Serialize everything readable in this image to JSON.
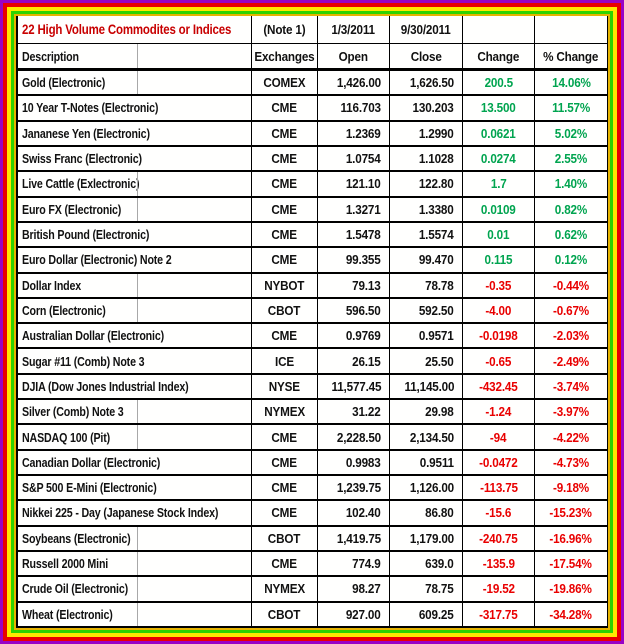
{
  "header": {
    "title": "22 High Volume Commodites or Indices",
    "note": "(Note 1)",
    "open_date": "1/3/2011",
    "close_date": "9/30/2011",
    "columns": [
      "Description",
      "Exchanges",
      "Open",
      "Close",
      "Change",
      "% Change"
    ]
  },
  "colors": {
    "positive_change": "#00a44f",
    "negative_change": "#e90000",
    "title_text": "#c80000",
    "frame_outer_to_inner": [
      "#9902c6",
      "#e90000",
      "#ffe800",
      "#2ed300",
      "#e6b400"
    ]
  },
  "rows": [
    {
      "description": "Gold (Electronic)",
      "exchange": "COMEX",
      "open": "1,426.00",
      "close": "1,626.50",
      "change": "200.5",
      "pct_change": "14.06%",
      "direction": "up"
    },
    {
      "description": "10 Year T-Notes (Electronic)",
      "exchange": "CME",
      "open": "116.703",
      "close": "130.203",
      "change": "13.500",
      "pct_change": "11.57%",
      "direction": "up"
    },
    {
      "description": "Jananese Yen (Electronic)",
      "exchange": "CME",
      "open": "1.2369",
      "close": "1.2990",
      "change": "0.0621",
      "pct_change": "5.02%",
      "direction": "up"
    },
    {
      "description": "Swiss Franc (Electronic)",
      "exchange": "CME",
      "open": "1.0754",
      "close": "1.1028",
      "change": "0.0274",
      "pct_change": "2.55%",
      "direction": "up"
    },
    {
      "description": "Live Cattle (Exlectronic)",
      "exchange": "CME",
      "open": "121.10",
      "close": "122.80",
      "change": "1.7",
      "pct_change": "1.40%",
      "direction": "up"
    },
    {
      "description": "Euro FX (Electronic)",
      "exchange": "CME",
      "open": "1.3271",
      "close": "1.3380",
      "change": "0.0109",
      "pct_change": "0.82%",
      "direction": "up"
    },
    {
      "description": "British Pound (Electronic)",
      "exchange": "CME",
      "open": "1.5478",
      "close": "1.5574",
      "change": "0.01",
      "pct_change": "0.62%",
      "direction": "up"
    },
    {
      "description": "Euro Dollar (Electronic) Note 2",
      "exchange": "CME",
      "open": "99.355",
      "close": "99.470",
      "change": "0.115",
      "pct_change": "0.12%",
      "direction": "up"
    },
    {
      "description": "Dollar Index",
      "exchange": "NYBOT",
      "open": "79.13",
      "close": "78.78",
      "change": "-0.35",
      "pct_change": "-0.44%",
      "direction": "down"
    },
    {
      "description": "Corn (Electronic)",
      "exchange": "CBOT",
      "open": "596.50",
      "close": "592.50",
      "change": "-4.00",
      "pct_change": "-0.67%",
      "direction": "down"
    },
    {
      "description": "Australian Dollar (Electronic)",
      "exchange": "CME",
      "open": "0.9769",
      "close": "0.9571",
      "change": "-0.0198",
      "pct_change": "-2.03%",
      "direction": "down"
    },
    {
      "description": "Sugar #11 (Comb) Note 3",
      "exchange": "ICE",
      "open": "26.15",
      "close": "25.50",
      "change": "-0.65",
      "pct_change": "-2.49%",
      "direction": "down"
    },
    {
      "description": "DJIA (Dow Jones Industrial Index)",
      "exchange": "NYSE",
      "open": "11,577.45",
      "close": "11,145.00",
      "change": "-432.45",
      "pct_change": "-3.74%",
      "direction": "down"
    },
    {
      "description": "Silver (Comb) Note 3",
      "exchange": "NYMEX",
      "open": "31.22",
      "close": "29.98",
      "change": "-1.24",
      "pct_change": "-3.97%",
      "direction": "down"
    },
    {
      "description": "NASDAQ 100 (Pit)",
      "exchange": "CME",
      "open": "2,228.50",
      "close": "2,134.50",
      "change": "-94",
      "pct_change": "-4.22%",
      "direction": "down"
    },
    {
      "description": "Canadian Dollar (Electronic)",
      "exchange": "CME",
      "open": "0.9983",
      "close": "0.9511",
      "change": "-0.0472",
      "pct_change": "-4.73%",
      "direction": "down"
    },
    {
      "description": "S&P 500 E-Mini (Electronic)",
      "exchange": "CME",
      "open": "1,239.75",
      "close": "1,126.00",
      "change": "-113.75",
      "pct_change": "-9.18%",
      "direction": "down"
    },
    {
      "description": "Nikkei 225 - Day (Japanese Stock Index)",
      "exchange": "CME",
      "open": "102.40",
      "close": "86.80",
      "change": "-15.6",
      "pct_change": "-15.23%",
      "direction": "down"
    },
    {
      "description": "Soybeans (Electronic)",
      "exchange": "CBOT",
      "open": "1,419.75",
      "close": "1,179.00",
      "change": "-240.75",
      "pct_change": "-16.96%",
      "direction": "down"
    },
    {
      "description": "Russell 2000 Mini",
      "exchange": "CME",
      "open": "774.9",
      "close": "639.0",
      "change": "-135.9",
      "pct_change": "-17.54%",
      "direction": "down"
    },
    {
      "description": "Crude Oil (Electronic)",
      "exchange": "NYMEX",
      "open": "98.27",
      "close": "78.75",
      "change": "-19.52",
      "pct_change": "-19.86%",
      "direction": "down"
    },
    {
      "description": "Wheat (Electronic)",
      "exchange": "CBOT",
      "open": "927.00",
      "close": "609.25",
      "change": "-317.75",
      "pct_change": "-34.28%",
      "direction": "down"
    }
  ]
}
